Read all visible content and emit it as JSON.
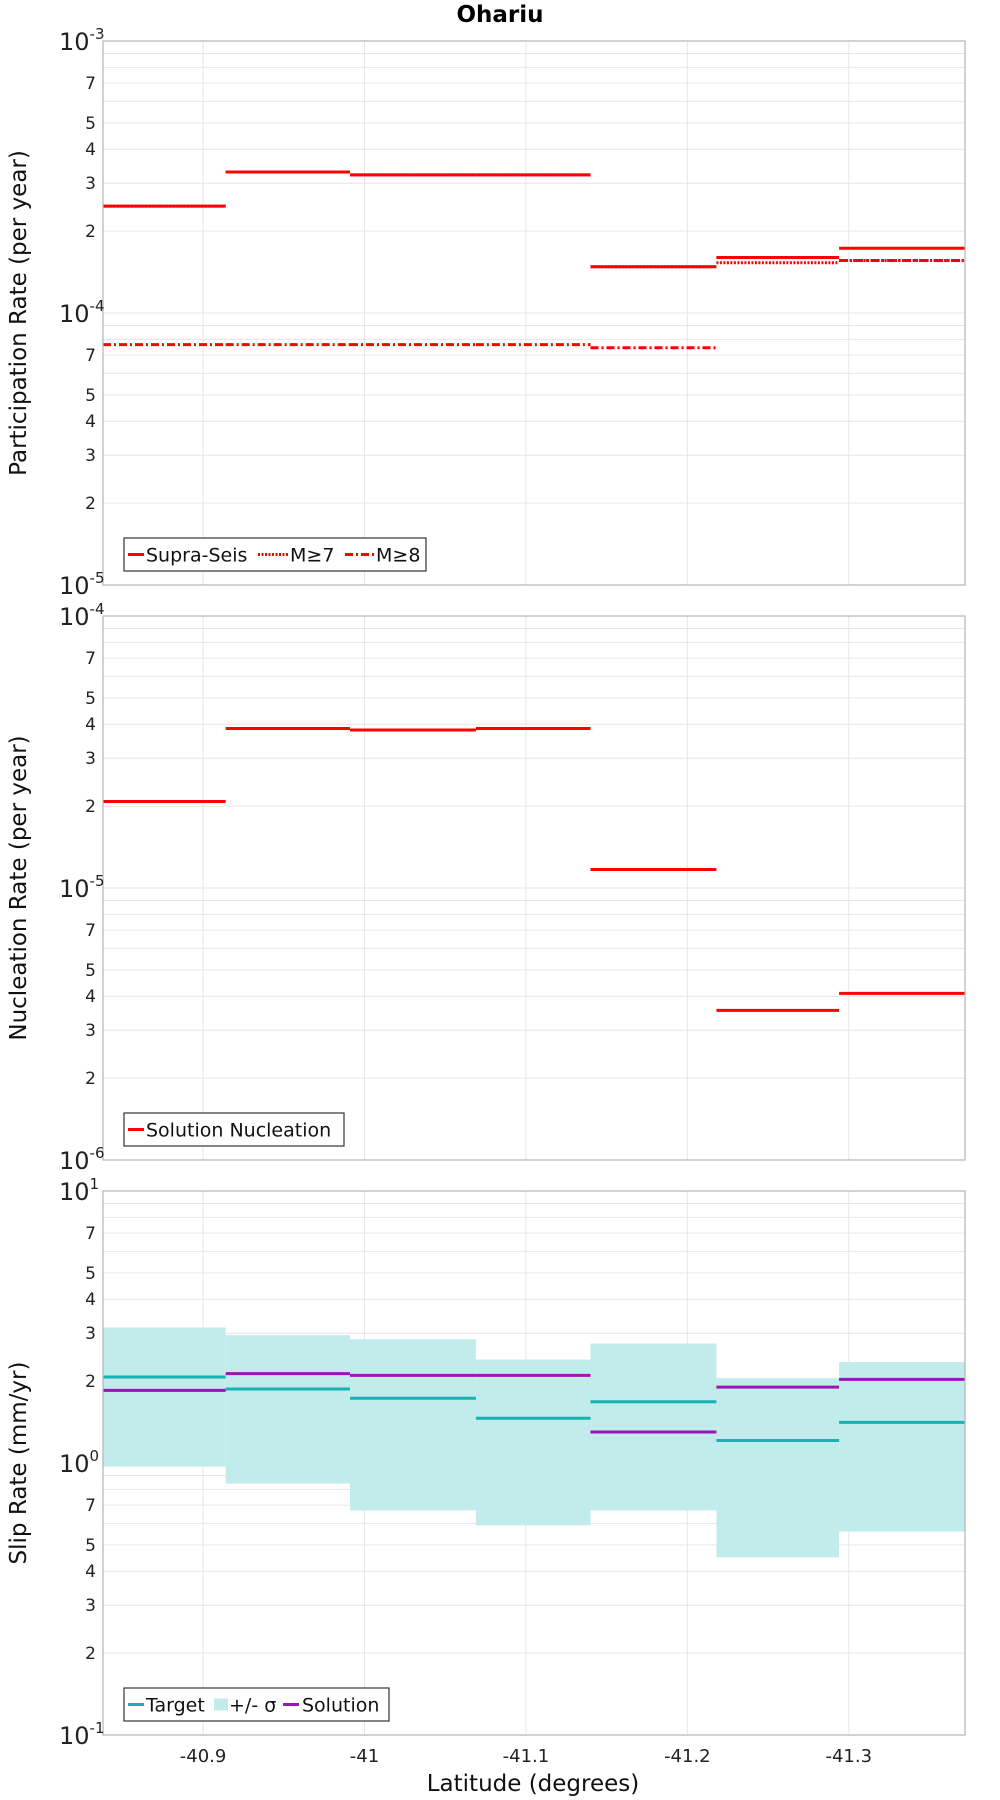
{
  "chart_data": {
    "title": "Ohariu",
    "xlabel": "Latitude (degrees)",
    "xlim": [
      -40.838,
      -41.372
    ],
    "xticks": [
      -40.9,
      -41,
      -41.1,
      -41.2,
      -41.3
    ],
    "xtick_labels": [
      "-40.9",
      "-41",
      "-41.1",
      "-41.2",
      "-41.3"
    ],
    "bins": [
      [
        -40.838,
        -40.914
      ],
      [
        -40.914,
        -40.991
      ],
      [
        -40.991,
        -41.069
      ],
      [
        -41.069,
        -41.14
      ],
      [
        -41.14,
        -41.218
      ],
      [
        -41.218,
        -41.294
      ],
      [
        -41.294,
        -41.372
      ]
    ],
    "panels": [
      {
        "type": "line",
        "ylabel": "Participation Rate (per year)",
        "yscale": "log",
        "ylim": [
          1e-05,
          0.001
        ],
        "series": [
          {
            "name": "Supra-Seis",
            "style": "solid",
            "color": "#ff0000",
            "values": [
              0.000247,
              0.00033,
              0.000322,
              0.000322,
              0.000148,
              0.00016,
              0.000173
            ]
          },
          {
            "name": "M≥7",
            "style": "dotted",
            "color": "#ff0000",
            "values": [
              0.000247,
              0.00033,
              0.000322,
              0.000322,
              0.000148,
              0.000153,
              0.000156
            ]
          },
          {
            "name": "M≥8",
            "style": "dashdot",
            "color": "#ff0000",
            "values": [
              7.65e-05,
              7.65e-05,
              7.65e-05,
              7.65e-05,
              7.45e-05,
              null,
              0.000156
            ]
          }
        ]
      },
      {
        "type": "line",
        "ylabel": "Nucleation Rate (per year)",
        "yscale": "log",
        "ylim": [
          1e-06,
          0.0001
        ],
        "series": [
          {
            "name": "Solution Nucleation",
            "style": "solid",
            "color": "#ff0000",
            "values": [
              2.08e-05,
              3.86e-05,
              3.81e-05,
              3.86e-05,
              1.17e-05,
              3.55e-06,
              4.1e-06
            ]
          }
        ]
      },
      {
        "type": "line",
        "ylabel": "Slip Rate (mm/yr)",
        "yscale": "log",
        "ylim": [
          0.1,
          10
        ],
        "band": {
          "name": "+/- σ",
          "color": "#c2ebeb",
          "lower": [
            0.97,
            0.84,
            0.67,
            0.59,
            0.67,
            0.45,
            0.56
          ],
          "upper": [
            3.15,
            2.95,
            2.85,
            2.4,
            2.75,
            2.05,
            2.35
          ]
        },
        "series": [
          {
            "name": "Target",
            "style": "solid",
            "color": "#17b2b2",
            "values": [
              2.07,
              1.87,
              1.73,
              1.46,
              1.68,
              1.21,
              1.41
            ]
          },
          {
            "name": "Solution",
            "style": "solid",
            "color": "#9a16b8",
            "values": [
              1.85,
              2.13,
              2.1,
              2.1,
              1.3,
              1.9,
              2.03
            ]
          }
        ]
      }
    ]
  }
}
